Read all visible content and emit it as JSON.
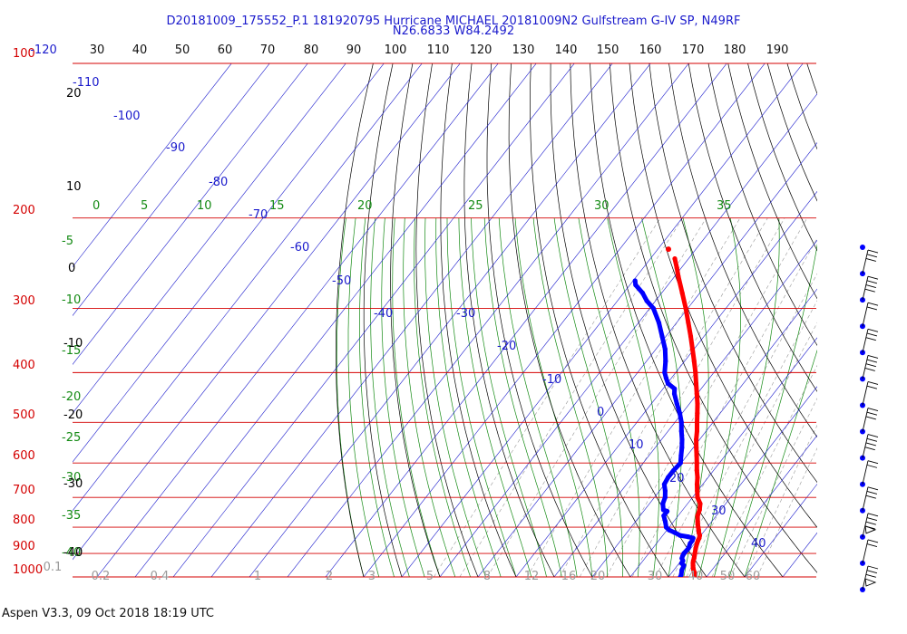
{
  "chart_data": {
    "type": "skew-t log-p sounding",
    "title_line1": "D20181009_175552_P.1 181920795 Hurricane MICHAEL  20181009N2 Gulfstream G-IV SP, N49RF",
    "title_line2": "N26.6833 W84.2492",
    "footer": "Aspen V3.3, 09 Oct 2018  18:19 UTC",
    "pressure_levels": [
      "100",
      "200",
      "300",
      "400",
      "500",
      "600",
      "700",
      "800",
      "900",
      "1000"
    ],
    "top_axis_labels": [
      "-120",
      "30",
      "40",
      "50",
      "60",
      "70",
      "80",
      "90",
      "100",
      "110",
      "120",
      "130",
      "140",
      "150",
      "160",
      "170",
      "180",
      "190"
    ],
    "isotherm_labels": [
      "-110",
      "-100",
      "-90",
      "-80",
      "-70",
      "-60",
      "-50",
      "-40",
      "-30",
      "-20",
      "-10",
      "0",
      "10",
      "20",
      "30",
      "40"
    ],
    "mixing_ratio_labels": [
      "0.1",
      "0.2",
      "0.4",
      "1",
      "2",
      "3",
      "5",
      "8",
      "12",
      "16",
      "20",
      "30",
      "40",
      "50",
      "60"
    ],
    "moist_adiabat_labels": [
      "0",
      "5",
      "10",
      "15",
      "20",
      "25",
      "30",
      "35"
    ],
    "left_green_labels": [
      "-5",
      "-10",
      "-15",
      "-20",
      "-25",
      "-30",
      "-35",
      "-40"
    ],
    "left_black_labels": [
      "20",
      "10",
      "0",
      "-10",
      "-20",
      "-30",
      "-40"
    ],
    "colors": {
      "title": "#1a1acc",
      "pressure": "#d40000",
      "temperature": "#ff0000",
      "dewpoint": "#0000ff",
      "isotherm": "#1a1acc",
      "dry_adiabat": "#000000",
      "moist_adiabat": "#138a13",
      "mixing_ratio": "#9a9a9a"
    },
    "series": [
      {
        "name": "temperature",
        "points": [
          [
            1010,
            27.9
          ],
          [
            1000,
            26.8
          ],
          [
            990,
            26.4
          ],
          [
            980,
            25.9
          ],
          [
            970,
            25.2
          ],
          [
            960,
            24.6
          ],
          [
            950,
            24.1
          ],
          [
            940,
            23.6
          ],
          [
            930,
            23.2
          ],
          [
            920,
            22.9
          ],
          [
            910,
            22.5
          ],
          [
            900,
            22.1
          ],
          [
            880,
            21.3
          ],
          [
            860,
            20.6
          ],
          [
            850,
            20.3
          ],
          [
            840,
            20.1
          ],
          [
            830,
            19.7
          ],
          [
            820,
            18.9
          ],
          [
            810,
            18.3
          ],
          [
            800,
            17.6
          ],
          [
            790,
            16.9
          ],
          [
            780,
            16.3
          ],
          [
            760,
            15.1
          ],
          [
            740,
            14.4
          ],
          [
            720,
            13.3
          ],
          [
            700,
            11.3
          ],
          [
            680,
            9.9
          ],
          [
            660,
            8.5
          ],
          [
            640,
            7.2
          ],
          [
            620,
            5.6
          ],
          [
            600,
            4.1
          ],
          [
            580,
            2.5
          ],
          [
            560,
            0.8
          ],
          [
            540,
            -0.9
          ],
          [
            520,
            -2.4
          ],
          [
            500,
            -4.2
          ],
          [
            480,
            -6.0
          ],
          [
            460,
            -7.9
          ],
          [
            440,
            -10.1
          ],
          [
            420,
            -12.4
          ],
          [
            400,
            -14.8
          ],
          [
            380,
            -17.5
          ],
          [
            360,
            -20.4
          ],
          [
            340,
            -23.5
          ],
          [
            320,
            -26.9
          ],
          [
            300,
            -30.5
          ],
          [
            280,
            -34.6
          ],
          [
            260,
            -39.0
          ],
          [
            250,
            -41.2
          ],
          [
            240,
            -43.6
          ]
        ]
      },
      {
        "name": "dewpoint",
        "points": [
          [
            1005,
            23.2
          ],
          [
            990,
            22.9
          ],
          [
            970,
            22.1
          ],
          [
            950,
            21.7
          ],
          [
            940,
            20.6
          ],
          [
            930,
            20.5
          ],
          [
            920,
            19.7
          ],
          [
            910,
            19.4
          ],
          [
            900,
            19.2
          ],
          [
            880,
            19.4
          ],
          [
            860,
            18.8
          ],
          [
            850,
            18.8
          ],
          [
            840,
            18.5
          ],
          [
            835,
            16.9
          ],
          [
            830,
            14.5
          ],
          [
            820,
            12.6
          ],
          [
            810,
            10.5
          ],
          [
            800,
            9.2
          ],
          [
            780,
            7.8
          ],
          [
            760,
            6.2
          ],
          [
            745,
            6.2
          ],
          [
            740,
            4.9
          ],
          [
            720,
            3.5
          ],
          [
            700,
            2.8
          ],
          [
            680,
            1.5
          ],
          [
            660,
            -0.1
          ],
          [
            640,
            -0.5
          ],
          [
            620,
            -0.5
          ],
          [
            600,
            -0.2
          ],
          [
            580,
            -1.6
          ],
          [
            560,
            -3.0
          ],
          [
            540,
            -4.6
          ],
          [
            520,
            -6.5
          ],
          [
            500,
            -8.3
          ],
          [
            480,
            -10.6
          ],
          [
            460,
            -13.3
          ],
          [
            440,
            -16.0
          ],
          [
            430,
            -17.0
          ],
          [
            420,
            -19.8
          ],
          [
            410,
            -21.4
          ],
          [
            400,
            -22.9
          ],
          [
            380,
            -25.0
          ],
          [
            360,
            -27.6
          ],
          [
            340,
            -31.0
          ],
          [
            320,
            -34.6
          ],
          [
            300,
            -39.0
          ],
          [
            290,
            -42.3
          ],
          [
            280,
            -45.0
          ],
          [
            270,
            -48.5
          ],
          [
            265,
            -49.5
          ]
        ]
      }
    ],
    "wind_barbs_count": 14
  }
}
